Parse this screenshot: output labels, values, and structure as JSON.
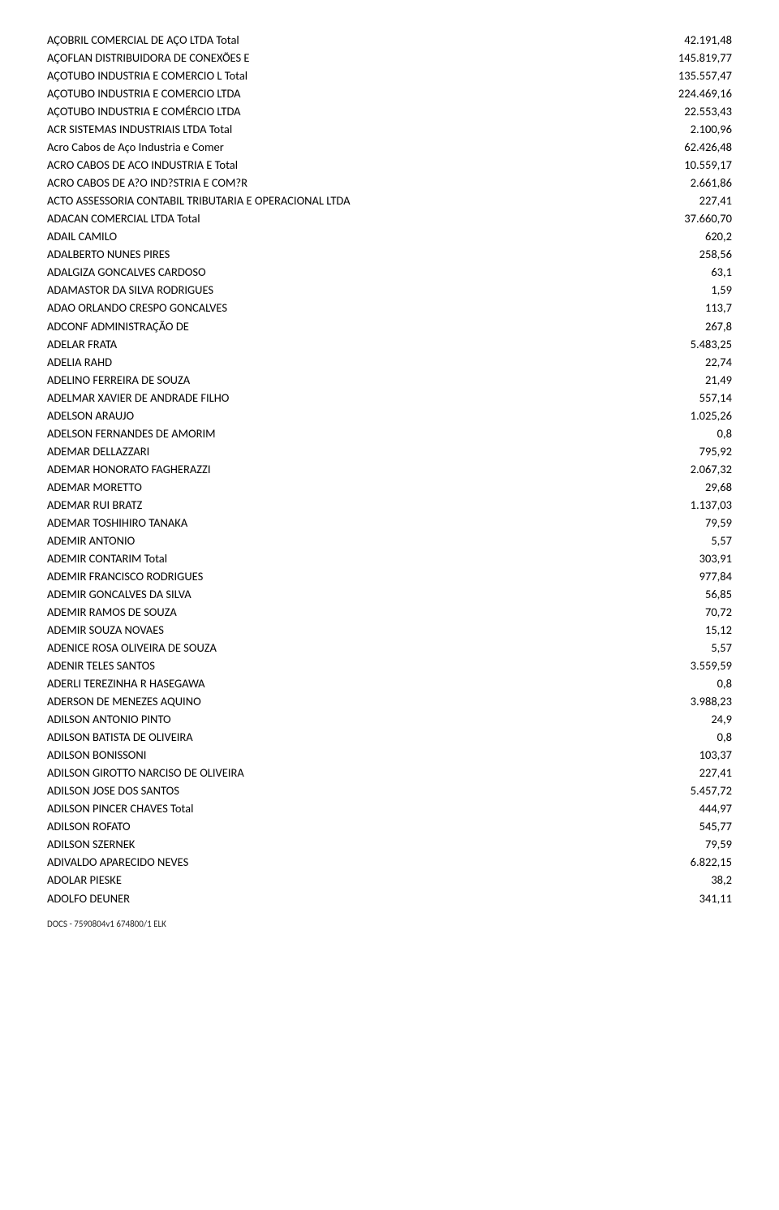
{
  "rows": [
    {
      "name": "AÇOBRIL COMERCIAL DE AÇO LTDA Total",
      "value": "42.191,48"
    },
    {
      "name": "AÇOFLAN DISTRIBUIDORA DE CONEXÕES E",
      "value": "145.819,77"
    },
    {
      "name": "AÇOTUBO INDUSTRIA E COMERCIO L Total",
      "value": "135.557,47"
    },
    {
      "name": "AÇOTUBO INDUSTRIA E COMERCIO LTDA",
      "value": "224.469,16"
    },
    {
      "name": "AÇOTUBO INDUSTRIA E COMÉRCIO LTDA",
      "value": "22.553,43"
    },
    {
      "name": "ACR SISTEMAS INDUSTRIAIS LTDA Total",
      "value": "2.100,96"
    },
    {
      "name": "Acro Cabos de Aço Industria e Comer",
      "value": "62.426,48"
    },
    {
      "name": "ACRO CABOS DE ACO INDUSTRIA E Total",
      "value": "10.559,17"
    },
    {
      "name": "ACRO CABOS DE A?O IND?STRIA E COM?R",
      "value": "2.661,86"
    },
    {
      "name": "ACTO ASSESSORIA CONTABIL TRIBUTARIA E OPERACIONAL LTDA",
      "value": "227,41"
    },
    {
      "name": "ADACAN COMERCIAL LTDA Total",
      "value": "37.660,70"
    },
    {
      "name": "ADAIL CAMILO",
      "value": "620,2"
    },
    {
      "name": "ADALBERTO NUNES PIRES",
      "value": "258,56"
    },
    {
      "name": "ADALGIZA GONCALVES CARDOSO",
      "value": "63,1"
    },
    {
      "name": "ADAMASTOR DA SILVA RODRIGUES",
      "value": "1,59"
    },
    {
      "name": "ADAO ORLANDO CRESPO GONCALVES",
      "value": "113,7"
    },
    {
      "name": "ADCONF ADMINISTRAÇÃO DE",
      "value": "267,8"
    },
    {
      "name": "ADELAR FRATA",
      "value": "5.483,25"
    },
    {
      "name": "ADELIA RAHD",
      "value": "22,74"
    },
    {
      "name": "ADELINO FERREIRA DE SOUZA",
      "value": "21,49"
    },
    {
      "name": "ADELMAR XAVIER DE ANDRADE FILHO",
      "value": "557,14"
    },
    {
      "name": "ADELSON ARAUJO",
      "value": "1.025,26"
    },
    {
      "name": "ADELSON FERNANDES DE AMORIM",
      "value": "0,8"
    },
    {
      "name": "ADEMAR DELLAZZARI",
      "value": "795,92"
    },
    {
      "name": "ADEMAR HONORATO FAGHERAZZI",
      "value": "2.067,32"
    },
    {
      "name": "ADEMAR MORETTO",
      "value": "29,68"
    },
    {
      "name": "ADEMAR RUI BRATZ",
      "value": "1.137,03"
    },
    {
      "name": "ADEMAR TOSHIHIRO TANAKA",
      "value": "79,59"
    },
    {
      "name": "ADEMIR ANTONIO",
      "value": "5,57"
    },
    {
      "name": "ADEMIR CONTARIM Total",
      "value": "303,91"
    },
    {
      "name": "ADEMIR FRANCISCO RODRIGUES",
      "value": "977,84"
    },
    {
      "name": "ADEMIR GONCALVES DA SILVA",
      "value": "56,85"
    },
    {
      "name": "ADEMIR RAMOS DE SOUZA",
      "value": "70,72"
    },
    {
      "name": "ADEMIR SOUZA NOVAES",
      "value": "15,12"
    },
    {
      "name": "ADENICE ROSA OLIVEIRA DE SOUZA",
      "value": "5,57"
    },
    {
      "name": "ADENIR TELES SANTOS",
      "value": "3.559,59"
    },
    {
      "name": "ADERLI TEREZINHA R HASEGAWA",
      "value": "0,8"
    },
    {
      "name": "ADERSON DE MENEZES AQUINO",
      "value": "3.988,23"
    },
    {
      "name": "ADILSON ANTONIO PINTO",
      "value": "24,9"
    },
    {
      "name": "ADILSON BATISTA DE OLIVEIRA",
      "value": "0,8"
    },
    {
      "name": "ADILSON BONISSONI",
      "value": "103,37"
    },
    {
      "name": "ADILSON GIROTTO NARCISO DE OLIVEIRA",
      "value": "227,41"
    },
    {
      "name": "ADILSON JOSE DOS SANTOS",
      "value": "5.457,72"
    },
    {
      "name": "ADILSON PINCER CHAVES Total",
      "value": "444,97"
    },
    {
      "name": "ADILSON ROFATO",
      "value": "545,77"
    },
    {
      "name": "ADILSON SZERNEK",
      "value": "79,59"
    },
    {
      "name": "ADIVALDO APARECIDO NEVES",
      "value": "6.822,15"
    },
    {
      "name": "ADOLAR PIESKE",
      "value": "38,2"
    },
    {
      "name": "ADOLFO DEUNER",
      "value": "341,11"
    }
  ],
  "footer": "DOCS - 7590804v1 674800/1 ELK",
  "style": {
    "font_family": "Calibri",
    "font_size_pt": 11,
    "text_color": "#000000",
    "background_color": "#ffffff",
    "footer_font_size_pt": 8
  }
}
